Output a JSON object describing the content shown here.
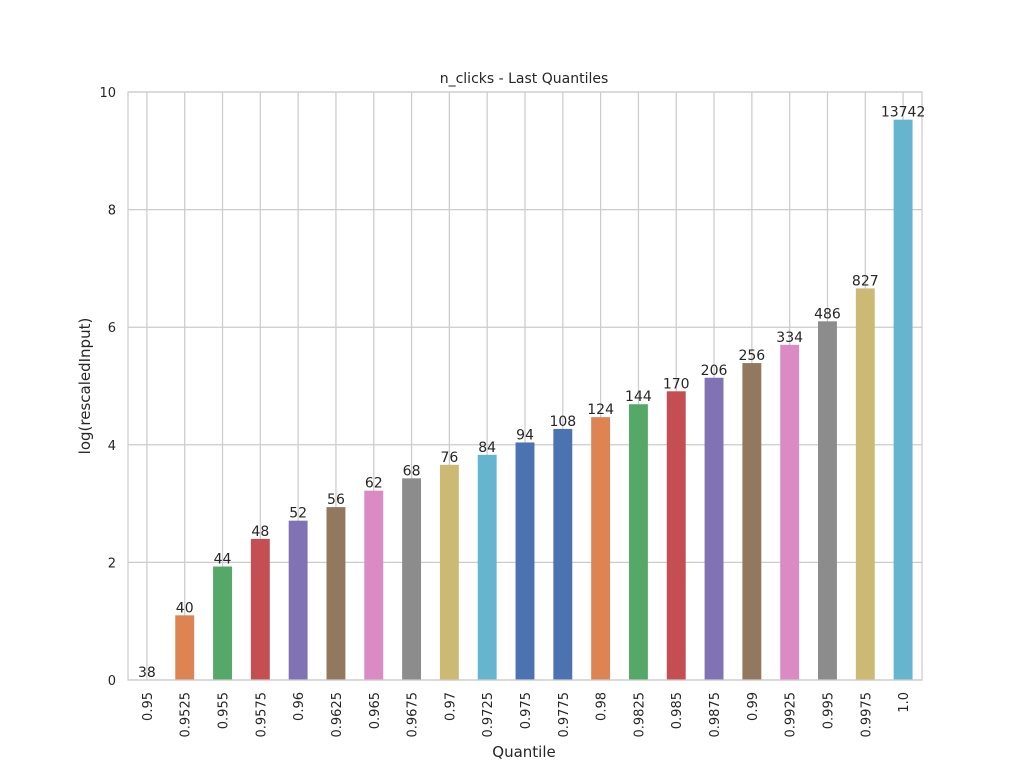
{
  "chart_data": {
    "type": "bar",
    "title": "n_clicks - Last Quantiles",
    "xlabel": "Quantile",
    "ylabel": "log(rescaledInput)",
    "ylim": [
      0,
      10
    ],
    "yticks": [
      "0",
      "2",
      "4",
      "6",
      "8",
      "10"
    ],
    "grid": true,
    "categories": [
      "0.95",
      "0.9525",
      "0.955",
      "0.9575",
      "0.96",
      "0.9625",
      "0.965",
      "0.9675",
      "0.97",
      "0.9725",
      "0.975",
      "0.9775",
      "0.98",
      "0.9825",
      "0.985",
      "0.9875",
      "0.99",
      "0.9925",
      "0.995",
      "0.9975",
      "1.0"
    ],
    "values": [
      0.0,
      1.1,
      1.93,
      2.4,
      2.71,
      2.94,
      3.22,
      3.43,
      3.66,
      3.83,
      4.04,
      4.27,
      4.47,
      4.69,
      4.91,
      5.14,
      5.39,
      5.7,
      6.1,
      6.66,
      9.53
    ],
    "bar_labels": [
      "38",
      "40",
      "44",
      "48",
      "52",
      "56",
      "62",
      "68",
      "76",
      "84",
      "94",
      "108",
      "124",
      "144",
      "170",
      "206",
      "256",
      "334",
      "486",
      "827",
      "13742"
    ],
    "colors": [
      "#4c72b0",
      "#dd8452",
      "#55a868",
      "#c44e52",
      "#8172b3",
      "#937860",
      "#da8bc3",
      "#8c8c8c",
      "#ccb974",
      "#64b5cd",
      "#4c72b0",
      "#4c72b0",
      "#dd8452",
      "#55a868",
      "#c44e52",
      "#8172b3",
      "#937860",
      "#da8bc3",
      "#8c8c8c",
      "#ccb974",
      "#64b5cd"
    ]
  }
}
